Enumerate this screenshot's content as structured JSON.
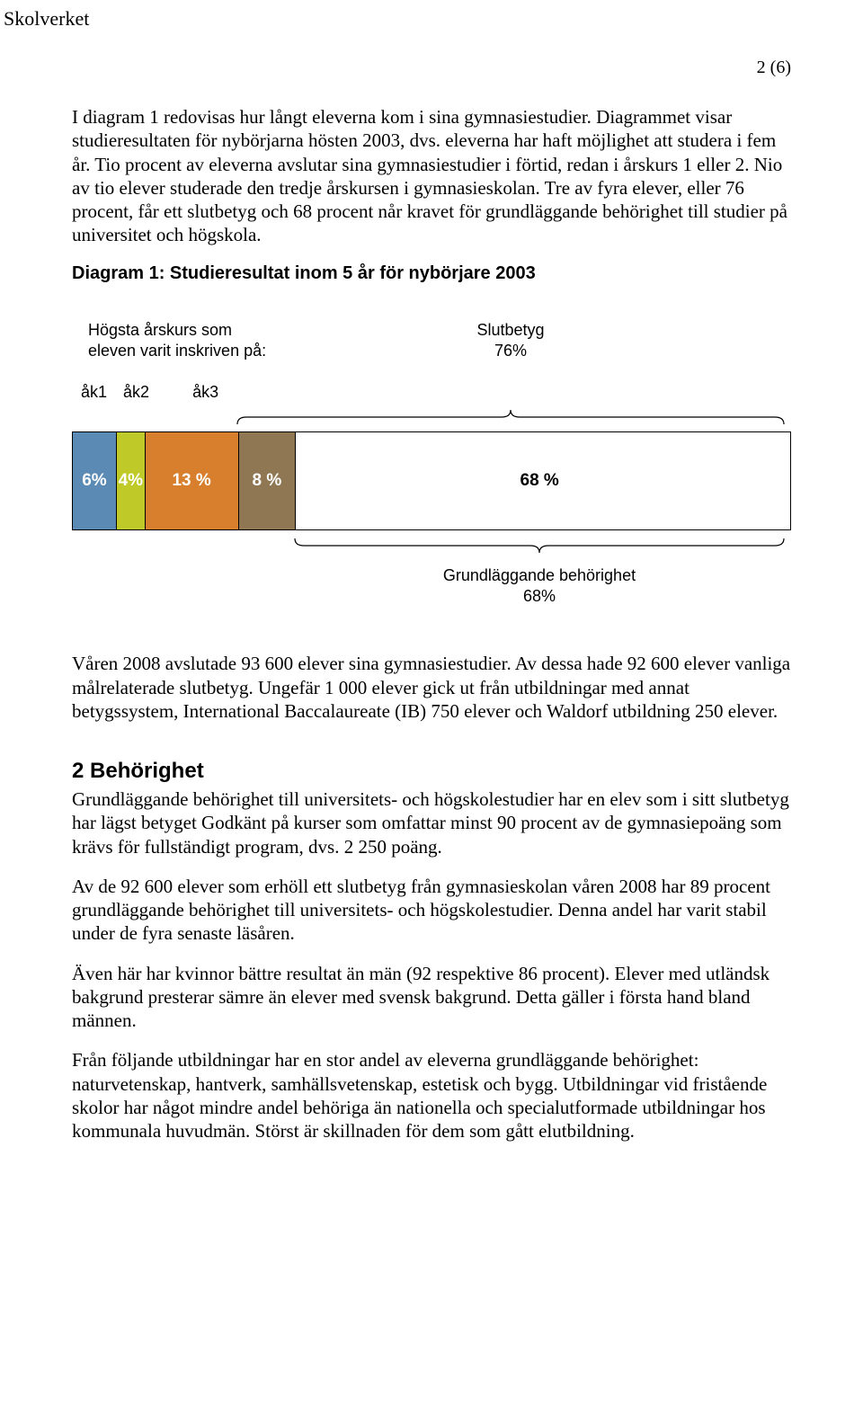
{
  "header": {
    "org": "Skolverket",
    "page_counter": "2 (6)"
  },
  "paragraphs": {
    "p1": "I diagram 1 redovisas hur långt eleverna kom i sina gymnasiestudier. Diagrammet visar studieresultaten för nybörjarna hösten 2003, dvs. eleverna har haft möjlighet att studera i fem år. Tio procent av eleverna avslutar sina gymnasiestudier i förtid, redan i årskurs 1 eller 2. Nio av tio elever studerade den tredje årskursen i gymnasieskolan. Tre av fyra elever, eller 76 procent, får ett slutbetyg och 68 procent når kravet för grundläggande behörighet till studier på universitet och högskola.",
    "p2": "Våren 2008 avslutade 93 600 elever sina gymnasiestudier. Av dessa hade 92 600 elever vanliga målrelaterade slutbetyg. Ungefär 1 000 elever gick ut från utbildningar med annat betygssystem, International Baccalaureate (IB) 750 elever och Waldorf utbildning 250 elever.",
    "h2": "2 Behörighet",
    "p3": "Grundläggande behörighet till universitets- och högskolestudier har en elev som i sitt slutbetyg har lägst betyget Godkänt på kurser som omfattar minst 90 procent av de gymnasiepoäng som krävs för fullständigt program, dvs. 2 250 poäng.",
    "p4": "Av de 92 600 elever som erhöll ett slutbetyg från gymnasieskolan våren 2008 har 89 procent grundläggande behörighet till universitets- och högskolestudier. Denna andel har varit stabil under de fyra senaste läsåren.",
    "p5": "Även här har kvinnor bättre resultat än män (92 respektive 86 procent). Elever med utländsk bakgrund presterar sämre än elever med svensk bakgrund. Detta gäller i första hand bland männen.",
    "p6": "Från följande utbildningar har en stor andel av eleverna grundläggande behörighet: naturvetenskap, hantverk, samhällsvetenskap, estetisk och bygg. Utbildningar vid fristående skolor har något mindre andel behöriga än nationella och specialutformade utbildningar hos kommunala huvudmän. Störst är skillnaden för dem som gått elutbildning."
  },
  "diagram": {
    "title": "Diagram 1: Studieresultat inom 5 år för nybörjare 2003",
    "legend_left_l1": "Högsta årskurs som",
    "legend_left_l2": "eleven varit inskriven på:",
    "top_callout_l1": "Slutbetyg",
    "top_callout_l2": "76%",
    "ak_labels": [
      "åk1",
      "åk2",
      "åk3"
    ],
    "segments": [
      {
        "label": "6%",
        "width_pct": 6,
        "color": "#5b8bb5",
        "dark_text": false
      },
      {
        "label": "4%",
        "width_pct": 4,
        "color": "#bfc928",
        "dark_text": false
      },
      {
        "label": "13 %",
        "width_pct": 13,
        "color": "#d77f2d",
        "dark_text": false
      },
      {
        "label": "8 %",
        "width_pct": 8,
        "color": "#8f7754",
        "dark_text": false
      },
      {
        "label": "68 %",
        "width_pct": 68,
        "color": "#ffffff",
        "dark_text": true
      }
    ],
    "bottom_callout_l1": "Grundläggande behörighet",
    "bottom_callout_l2": "68%",
    "top_brace_start_pct": 23,
    "bottom_brace_start_pct": 31,
    "bar_border_color": "#000000",
    "brace_color": "#000000"
  }
}
